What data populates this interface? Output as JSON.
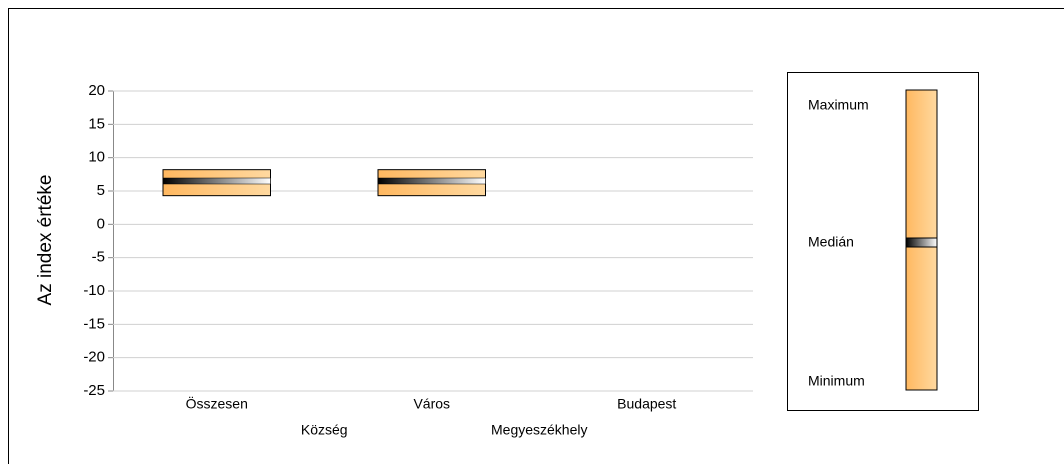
{
  "chart_data": {
    "type": "range",
    "y_label": "Az index értéke",
    "categories": [
      "Összesen",
      "Község",
      "Város",
      "Megyeszékhely",
      "Budapest"
    ],
    "series": {
      "min": [
        4.3,
        null,
        4.3,
        null,
        null
      ],
      "median": [
        6.5,
        null,
        6.5,
        null,
        null
      ],
      "max": [
        8.2,
        null,
        8.2,
        null,
        null
      ]
    },
    "color": "#ffc47a",
    "ylim": [
      -25,
      20
    ],
    "yticks": [
      -25,
      -20,
      -15,
      -10,
      -5,
      0,
      5,
      10,
      15,
      20
    ],
    "grid": true,
    "legend": {
      "max_label": "Maximum",
      "median_label": "Medián",
      "min_label": "Minimum"
    }
  }
}
